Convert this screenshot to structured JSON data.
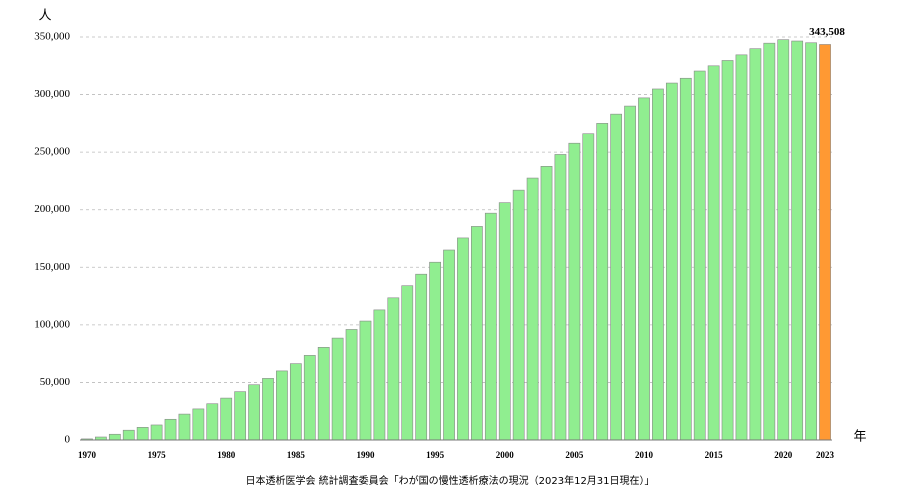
{
  "chart_data": {
    "type": "bar",
    "y_unit": "人",
    "x_unit": "年",
    "source": "日本透析医学会 統計調査委員会「わが国の慢性透析療法の現況（2023年12月31日現在）」",
    "categories": [
      "1970",
      null,
      null,
      null,
      null,
      "1975",
      null,
      null,
      null,
      null,
      "1980",
      null,
      null,
      null,
      null,
      "1985",
      null,
      null,
      null,
      null,
      "1990",
      null,
      null,
      null,
      null,
      "1995",
      null,
      null,
      null,
      null,
      "2000",
      null,
      null,
      null,
      null,
      "2005",
      null,
      null,
      null,
      null,
      "2010",
      null,
      null,
      null,
      null,
      "2015",
      null,
      null,
      null,
      null,
      "2020",
      null,
      null,
      "2023"
    ],
    "values": [
      949,
      2600,
      5000,
      8500,
      11000,
      13059,
      18000,
      22500,
      27000,
      31500,
      36397,
      42000,
      48000,
      53500,
      60000,
      66310,
      73500,
      80500,
      88500,
      96000,
      103296,
      113000,
      123500,
      134000,
      144000,
      154413,
      165000,
      175500,
      185500,
      197000,
      206134,
      217000,
      227500,
      237700,
      248000,
      257765,
      266000,
      275000,
      283000,
      290000,
      297126,
      304856,
      310007,
      314180,
      320448,
      324986,
      329609,
      334505,
      339841,
      344640,
      347671,
      346500,
      345000,
      343508
    ],
    "value_labels": [
      null,
      null,
      null,
      null,
      null,
      null,
      null,
      null,
      null,
      null,
      null,
      null,
      null,
      null,
      null,
      null,
      null,
      null,
      null,
      null,
      null,
      null,
      null,
      null,
      null,
      null,
      null,
      null,
      null,
      null,
      null,
      null,
      null,
      null,
      null,
      null,
      null,
      null,
      null,
      null,
      null,
      null,
      null,
      null,
      null,
      null,
      null,
      null,
      null,
      null,
      null,
      null,
      null,
      "343,508"
    ],
    "color": "#90ee90",
    "last_bar_color": "#ff9933",
    "ylim": [
      0,
      350000
    ],
    "yticks": [
      0,
      {
        "value": 50000,
        "label": "50,000"
      },
      {
        "value": 100000,
        "label": "100,000"
      },
      {
        "value": 150000,
        "label": "150,000"
      },
      {
        "value": 200000,
        "label": "200,000"
      },
      {
        "value": 250000,
        "label": "250,000"
      },
      {
        "value": 300000,
        "label": "300,000"
      },
      {
        "value": 350000,
        "label": "350,000"
      }
    ],
    "grid": true
  }
}
